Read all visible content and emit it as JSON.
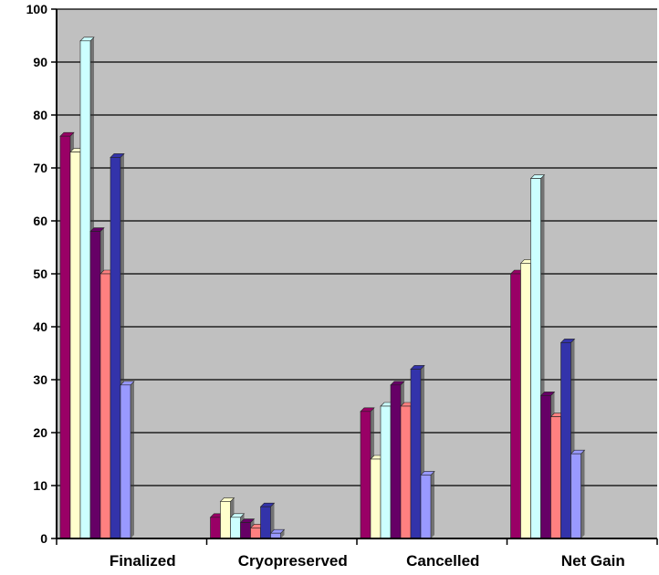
{
  "chart_data": {
    "type": "bar",
    "title": "",
    "xlabel": "",
    "ylabel": "",
    "ylim": [
      0,
      100
    ],
    "yticks": [
      0,
      10,
      20,
      30,
      40,
      50,
      60,
      70,
      80,
      90,
      100
    ],
    "grid": true,
    "legend": "none",
    "background_color": "#c0c0c0",
    "categories": [
      "Finalized",
      "Cryopreserved",
      "Cancelled",
      "Net Gain"
    ],
    "series": [
      {
        "color": "#990066",
        "values": [
          76,
          4,
          24,
          50
        ]
      },
      {
        "color": "#ffffcc",
        "values": [
          73,
          7,
          15,
          52
        ]
      },
      {
        "color": "#ccffff",
        "values": [
          94,
          4,
          25,
          68
        ]
      },
      {
        "color": "#660066",
        "values": [
          58,
          3,
          29,
          27
        ]
      },
      {
        "color": "#ff8080",
        "values": [
          50,
          2,
          25,
          23
        ]
      },
      {
        "color": "#3333aa",
        "values": [
          72,
          6,
          32,
          37
        ]
      },
      {
        "color": "#9999ff",
        "values": [
          29,
          1,
          12,
          16
        ]
      }
    ]
  }
}
